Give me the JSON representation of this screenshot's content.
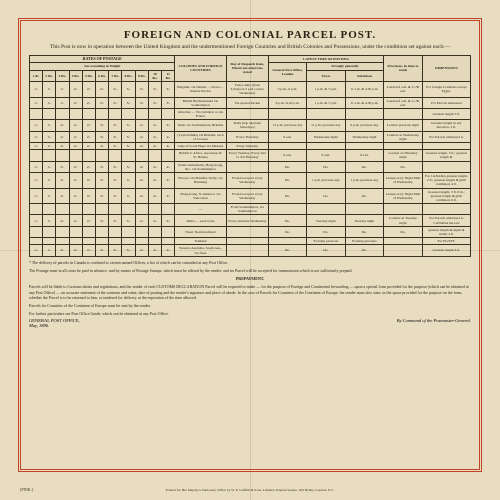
{
  "colors": {
    "paper": "#e8ddc0",
    "ink": "#2a2418",
    "border": "#c0442a"
  },
  "title": "FOREIGN AND COLONIAL PARCEL POST.",
  "subtitle": "This Post is now in operation between the United Kingdom and the undermentioned Foreign Countries and British Colonies and Possessions, under the conditions set against each:—",
  "headers": {
    "rates_group": "RATES OF POSTAGE",
    "rates_sub": "Not exceeding in Weight",
    "rate_cols": [
      "1 lb.",
      "2 lbs.",
      "3 lbs.",
      "4 lbs.",
      "5 lbs.",
      "6 lbs.",
      "7 lbs.",
      "8 lbs.",
      "9 lbs.",
      "10 lbs.",
      "11 lbs."
    ],
    "countries": "COLONIES AND FOREIGN COUNTRIES",
    "dispatch": "Day of Despatch from, Where not otherwise stated",
    "times_group": "LATEST TIME OF POSTING",
    "times_sub1": "Strongly generally",
    "gpo": "General Post Office, London",
    "town": "Town",
    "suburban": "Suburban",
    "provinces": "Provinces, In time to reach",
    "remarks": "DIMENSIONS"
  },
  "rows": [
    {
      "rates": [
        "1/-",
        "1/-",
        "1/-",
        "2/-",
        "2/-",
        "2/-",
        "2/-",
        "3/-",
        "3/-",
        "3/-",
        "3/-"
      ],
      "country": "Belgium, via Ostend — Dover—Ostend Service",
      "dispatch": "Twice daily (from Liverpool 2 p.m.) every Wednesday",
      "gpo": "5 p.m.–6 p.m.",
      "town": "1 p.m. & 7 p.m.",
      "sub": "11 a.m. & 4.30 p.m.",
      "prov": "London 6 a.m. & 11.30 a.m.",
      "remarks": "For foreign Countries except Egypt."
    },
    {
      "rates": [
        "1/-",
        "1/-",
        "1/-",
        "2/-",
        "2/-",
        "2/-",
        "2/-",
        "3/-",
        "3/-",
        "3/-",
        "3/-"
      ],
      "country": "British Bechuanaland via Southampton",
      "dispatch": "Via special Packet",
      "gpo": "6 p.m.–6.45 p.m.",
      "town": "1 p.m. & 7 p.m.",
      "sub": "11 a.m. & 4.30 p.m.",
      "prov": "London 6 a.m. & 11.30 a.m.",
      "remarks": "For Parcels addressed"
    },
    {
      "rates": [
        "",
        "",
        "",
        "",
        "",
        "",
        "",
        "",
        "",
        "",
        ""
      ],
      "country": "Gibraltar — Via Gibraltar or via France",
      "dispatch": "",
      "gpo": "",
      "town": "",
      "sub": "",
      "prov": "",
      "remarks": "Greatest length 3 ft."
    },
    {
      "rates": [
        "1/-",
        "1/-",
        "2/-",
        "2/-",
        "2/-",
        "3/-",
        "3/-",
        "3/-",
        "4/-",
        "4/-",
        "4/-"
      ],
      "country": "Siam, via Southampton, Brindisi",
      "dispatch": "Daily (trip alternate Saturdays)",
      "gpo": "12 p.m. previous day",
      "town": "11 p.m. previous day",
      "sub": "6 p.m. previous day",
      "prov": "London previous night",
      "remarks": "Greatest length in any direction, 2 ft."
    },
    {
      "rates": [
        "1/-",
        "1/-",
        "2/-",
        "2/-",
        "2/-",
        "3/-",
        "3/-",
        "3/-",
        "4/-",
        "4/-",
        "4/-"
      ],
      "country": "(Ceylon/India) via Brindisi, each of 4 routes",
      "dispatch": "Every Thursday",
      "gpo": "9 a.m.",
      "town": "Wednesday night",
      "sub": "Wednesday night",
      "prov": "London on Wednesday night",
      "remarks": "For Parcels addressed to"
    },
    {
      "rates": [
        "1/-",
        "1/-",
        "2/-",
        "2/-",
        "2/-",
        "3/-",
        "3/-",
        "3/-",
        "4/-",
        "4/-",
        "4/-"
      ],
      "country": "Cape of Good Hope via Madeira",
      "dispatch": "Every Saturday",
      "gpo": "",
      "town": "",
      "sub": "",
      "prov": "",
      "remarks": ""
    },
    {
      "rates": [
        "",
        "",
        "",
        "",
        "",
        "",
        "",
        "",
        "",
        "",
        ""
      ],
      "country": "British S. Africa, Ascension & St. Helena",
      "dispatch": "Every Tuesday; Every 2nd or 3rd Thursday",
      "gpo": "9 a.m.",
      "town": "9 a.m.",
      "sub": "9 a.m.",
      "prov": "London on Thursday night",
      "remarks": "Greatest length, 3 ft.; greatest length &"
    },
    {
      "rates": [
        "1/-",
        "1/-",
        "2/-",
        "2/-",
        "2/-",
        "3/-",
        "3/-",
        "3/-",
        "4/-",
        "4/-",
        "4/-"
      ],
      "country": "Straits Settlements, Hong Kong, &c., via Southampton",
      "dispatch": "",
      "gpo": "Do.",
      "town": "Do.",
      "sub": "Do.",
      "prov": "Do.",
      "remarks": ""
    },
    {
      "rates": [
        "1/-",
        "1/-",
        "2/-",
        "2/-",
        "2/-",
        "3/-",
        "3/-",
        "3/-",
        "4/-",
        "4/-",
        "4/-"
      ],
      "country": "Europe: via Brindisi, Sicily, via Hamburg",
      "dispatch": "From Liverpool every Wednesday",
      "gpo": "Do.",
      "town": "1 p.m. previous day",
      "sub": "1 p.m. previous day",
      "prov": "Liverpool by Night Mail of Wednesday",
      "remarks": "For CANADA greatest length, 2 ft.; greatest length & girth combined, 4 ft."
    },
    {
      "rates": [
        "1/-",
        "1/-",
        "2/-",
        "2/-",
        "2/-",
        "3/-",
        "3/-",
        "3/-",
        "4/-",
        "4/-",
        "4/-"
      ],
      "country": "Hong-Kong, N-America, via Vancouver",
      "dispatch": "From Liverpool every Wednesday",
      "gpo": "Do.",
      "town": "Do.",
      "sub": "Do.",
      "prov": "Liverpool by Night Mail of Wednesday",
      "remarks": "Greatest length, 3 ft. 6 in.; greatest length & girth combined, 6 ft."
    },
    {
      "rates": [
        "",
        "",
        "",
        "",
        "",
        "",
        "",
        "",
        "",
        "",
        ""
      ],
      "country": "—",
      "dispatch": "From Southampton, via Southampton",
      "gpo": "",
      "town": "",
      "sub": "",
      "prov": "",
      "remarks": ""
    },
    {
      "rates": [
        "1/-",
        "1/-",
        "2/-",
        "2/-",
        "2/-",
        "3/-",
        "3/-",
        "3/-",
        "4/-",
        "4/-",
        "4/-"
      ],
      "country": "Malta — each route",
      "dispatch": "Every alternate Wednesday",
      "gpo": "Do.",
      "town": "Tuesday night",
      "sub": "Tuesday night",
      "prov": "London on Tuesday night",
      "remarks": "For Parcels addressed to CANADA the rate"
    },
    {
      "rates": [
        "",
        "",
        "",
        "",
        "",
        "",
        "",
        "",
        "",
        "",
        ""
      ],
      "country": "Natal, Newfoundland",
      "dispatch": "",
      "gpo": "Do.",
      "town": "Do.",
      "sub": "Do.",
      "prov": "Do.",
      "remarks": "greatest length & depth & width, 4 ft."
    },
    {
      "rates": [
        "",
        "",
        "",
        "",
        "",
        "",
        "",
        "",
        "",
        "",
        ""
      ],
      "country": "Trinidad",
      "dispatch": "",
      "gpo": "",
      "town": "Evening previous",
      "sub": "Evening previous",
      "prov": "",
      "remarks": "For EGYPT."
    },
    {
      "rates": [
        "1/-",
        "1/-",
        "2/-",
        "2/-",
        "2/-",
        "3/-",
        "3/-",
        "3/-",
        "4/-",
        "4/-",
        "4/-"
      ],
      "country": "Western Australia, South Aus., via Suez",
      "dispatch": "",
      "gpo": "Do.",
      "town": "Do.",
      "sub": "Do.",
      "prov": "",
      "remarks": "Greatest length 4 ft."
    }
  ],
  "footnote": "* The delivery of parcels in Canada is confined to certain named Offices, a list of which can be consulted at any Post Office.",
  "footer_paras": [
    "The Postage must in all cases be paid in advance, and by means of Postage Stamps, which must be affixed by the sender, and no Parcel will be accepted for transmission which is not sufficiently prepaid.",
    "PREPAYMENT.",
    "Parcels will be liable to Customs duties and regulations, and the sender of each CUSTOMS DECLARATION Parcel will be required to make — for the purpose of Foreign and Continental forwarding — upon a special form provided for the purpose (which can be obtained at any Post Office) — an accurate statement of the contents and value, date of posting and the sender's signature and place of abode. In the case of Parcels for Countries of the Continent of Europe, the sender must also state, in the space provided for the purpose on the form, whether the Parcel is to be returned to him, or tendered for delivery at the expiration of the time allowed.",
    "Parcels for Countries of the Continent of Europe must be sent by the sender.",
    "For further particulars see Post Office Guide, which can be obtained at any Post Office."
  ],
  "gpo_line_left": "GENERAL POST OFFICE,",
  "gpo_line_left2": "May, 1886.",
  "gpo_line_right": "By Command of the Postmaster-General.",
  "imprint": "Printed for Her Majesty's Stationery Office by W. P. Griffith & Sons, Limited, Prujean Square, Old Bailey, London, E.C.",
  "pink_mark": "[PINK.]"
}
